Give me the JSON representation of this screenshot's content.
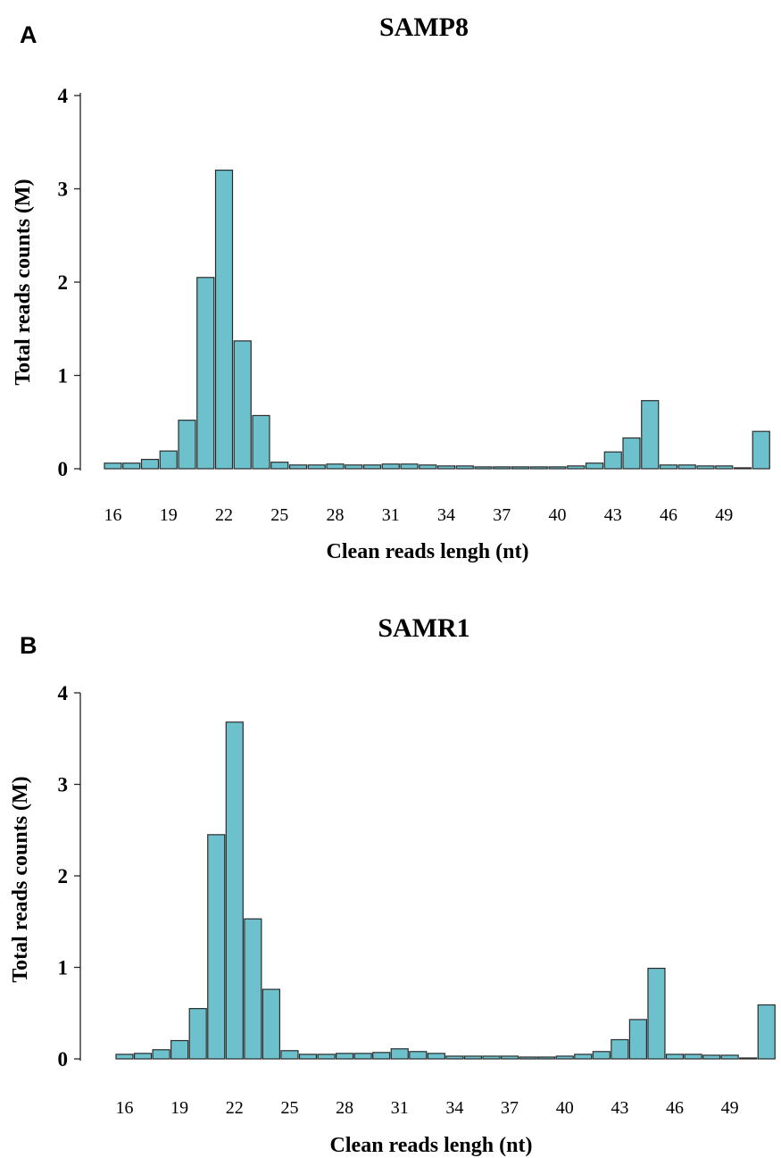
{
  "chart_data": [
    {
      "type": "bar",
      "panel_label": "A",
      "title": "SAMP8",
      "xlabel": "Clean reads lengh (nt)",
      "ylabel": "Total reads counts (M)",
      "ylim": [
        0,
        4
      ],
      "yticks": [
        0,
        1,
        2,
        3,
        4
      ],
      "xtick_labels": [
        "16",
        "19",
        "22",
        "25",
        "28",
        "31",
        "34",
        "37",
        "40",
        "43",
        "46",
        "49"
      ],
      "grid": false,
      "bar_color": "#6cc1cc",
      "categories": [
        16,
        17,
        18,
        19,
        20,
        21,
        22,
        23,
        24,
        25,
        26,
        27,
        28,
        29,
        30,
        31,
        32,
        33,
        34,
        35,
        36,
        37,
        38,
        39,
        40,
        41,
        42,
        43,
        44,
        45,
        46,
        47,
        48,
        49,
        50,
        51
      ],
      "values": [
        0.06,
        0.06,
        0.1,
        0.19,
        0.52,
        2.05,
        3.2,
        1.37,
        0.57,
        0.07,
        0.04,
        0.04,
        0.05,
        0.04,
        0.04,
        0.05,
        0.05,
        0.04,
        0.03,
        0.03,
        0.02,
        0.02,
        0.02,
        0.02,
        0.02,
        0.03,
        0.06,
        0.18,
        0.33,
        0.73,
        0.04,
        0.04,
        0.03,
        0.03,
        0.01,
        0.4
      ]
    },
    {
      "type": "bar",
      "panel_label": "B",
      "title": "SAMR1",
      "xlabel": "Clean reads lengh (nt)",
      "ylabel": "Total reads counts (M)",
      "ylim": [
        0,
        4
      ],
      "yticks": [
        0,
        1,
        2,
        3,
        4
      ],
      "xtick_labels": [
        "16",
        "19",
        "22",
        "25",
        "28",
        "31",
        "34",
        "37",
        "40",
        "43",
        "46",
        "49"
      ],
      "grid": false,
      "bar_color": "#6cc1cc",
      "categories": [
        16,
        17,
        18,
        19,
        20,
        21,
        22,
        23,
        24,
        25,
        26,
        27,
        28,
        29,
        30,
        31,
        32,
        33,
        34,
        35,
        36,
        37,
        38,
        39,
        40,
        41,
        42,
        43,
        44,
        45,
        46,
        47,
        48,
        49,
        50,
        51
      ],
      "values": [
        0.05,
        0.06,
        0.1,
        0.2,
        0.55,
        2.45,
        3.68,
        1.53,
        0.76,
        0.09,
        0.05,
        0.05,
        0.06,
        0.06,
        0.07,
        0.11,
        0.08,
        0.06,
        0.03,
        0.03,
        0.03,
        0.03,
        0.02,
        0.02,
        0.03,
        0.05,
        0.08,
        0.21,
        0.43,
        0.99,
        0.05,
        0.05,
        0.04,
        0.04,
        0.01,
        0.59
      ]
    }
  ]
}
